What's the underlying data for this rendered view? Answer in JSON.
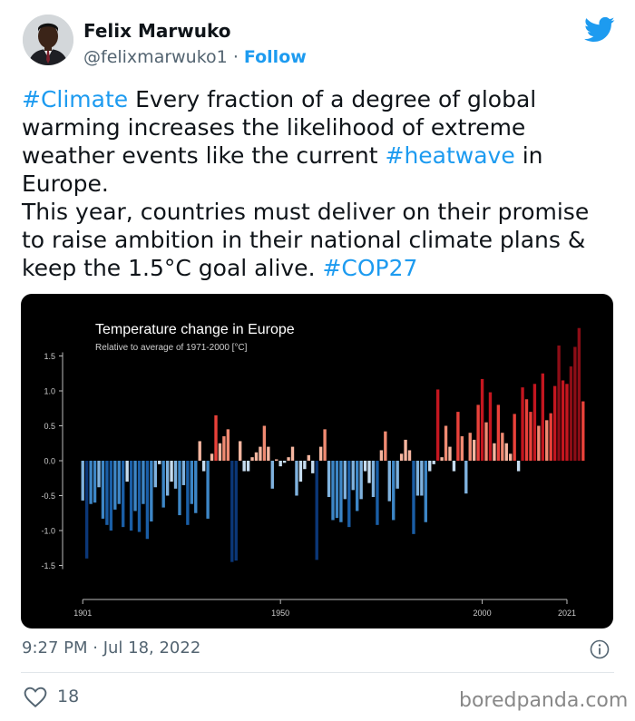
{
  "tweet": {
    "author_name": "Felix Marwuko",
    "handle": "@felixmarwuko1",
    "separator": "·",
    "follow_label": "Follow",
    "paragraph1": [
      {
        "text": "#Climate",
        "hashtag": true
      },
      {
        "text": " Every fraction of a degree of global warming increases the likelihood of extreme weather events like the current ",
        "hashtag": false
      },
      {
        "text": "#heatwave",
        "hashtag": true
      },
      {
        "text": " in Europe.",
        "hashtag": false
      }
    ],
    "paragraph2": [
      {
        "text": "This year, countries must deliver on their promise to raise ambition in their national climate plans & keep the 1.5°C goal alive. ",
        "hashtag": false
      },
      {
        "text": "#COP27",
        "hashtag": true
      }
    ],
    "timestamp": "9:27 PM · Jul 18, 2022",
    "like_count": "18"
  },
  "watermark": "boredpanda.com",
  "icons": {
    "platform": "twitter-bird-icon",
    "info": "info-icon",
    "like": "heart-icon"
  },
  "colors": {
    "link_blue": "#1d9bf0",
    "secondary_text": "#536471",
    "chart_background": "#000000"
  },
  "chart_data": {
    "type": "bar",
    "title": "Temperature change in Europe",
    "subtitle": "Relative to average of 1971-2000 [°C]",
    "x_start": 1901,
    "x_end": 2021,
    "x_ticks": [
      1901,
      1950,
      2000,
      2021
    ],
    "y_ticks": [
      1.5,
      1.0,
      0.5,
      0.0,
      -0.5,
      -1.0,
      -1.5
    ],
    "y_tick_labels": [
      "1.5",
      "1.0",
      "0.5",
      "0.0",
      "-0.5",
      "-1.0",
      "-1.5"
    ],
    "ylim": [
      -1.6,
      1.9
    ],
    "grid": false,
    "color_scale": "blue for below average, red for above average, deeper shades for larger anomalies",
    "values": [
      -0.57,
      -1.4,
      -0.62,
      -0.6,
      -0.38,
      -0.83,
      -0.92,
      -1.0,
      -0.7,
      -0.62,
      -0.95,
      -0.3,
      -1.0,
      -0.72,
      -1.02,
      -0.62,
      -1.12,
      -0.87,
      -0.38,
      -0.05,
      -0.67,
      -0.5,
      -0.3,
      -0.4,
      -0.78,
      -0.35,
      -0.92,
      -0.62,
      -0.75,
      0.28,
      -0.15,
      -0.83,
      0.1,
      0.65,
      0.25,
      0.35,
      0.45,
      -1.45,
      -1.43,
      0.28,
      -0.15,
      -0.15,
      0.05,
      0.12,
      0.2,
      0.5,
      0.2,
      -0.4,
      0.02,
      -0.08,
      -0.03,
      0.05,
      0.2,
      -0.5,
      -0.3,
      -0.12,
      0.08,
      -0.18,
      -1.42,
      0.2,
      0.45,
      -0.52,
      -0.85,
      -0.82,
      -0.88,
      -0.55,
      -0.95,
      -0.42,
      -0.72,
      -0.55,
      -0.15,
      -0.32,
      -0.52,
      -0.92,
      0.15,
      0.42,
      -0.58,
      -0.85,
      -0.4,
      0.1,
      0.3,
      0.15,
      -1.05,
      -0.5,
      -0.5,
      -0.88,
      -0.15,
      -0.05,
      1.02,
      0.05,
      0.5,
      0.2,
      -0.15,
      0.7,
      0.35,
      -0.47,
      0.4,
      0.3,
      0.8,
      1.17,
      0.55,
      0.98,
      0.25,
      0.8,
      0.4,
      0.25,
      0.1,
      0.67,
      -0.15,
      1.05,
      0.88,
      0.7,
      1.1,
      0.5,
      1.25,
      0.58,
      0.68,
      1.07,
      1.65,
      1.15,
      1.1,
      1.35,
      1.63,
      1.9,
      0.85
    ]
  }
}
